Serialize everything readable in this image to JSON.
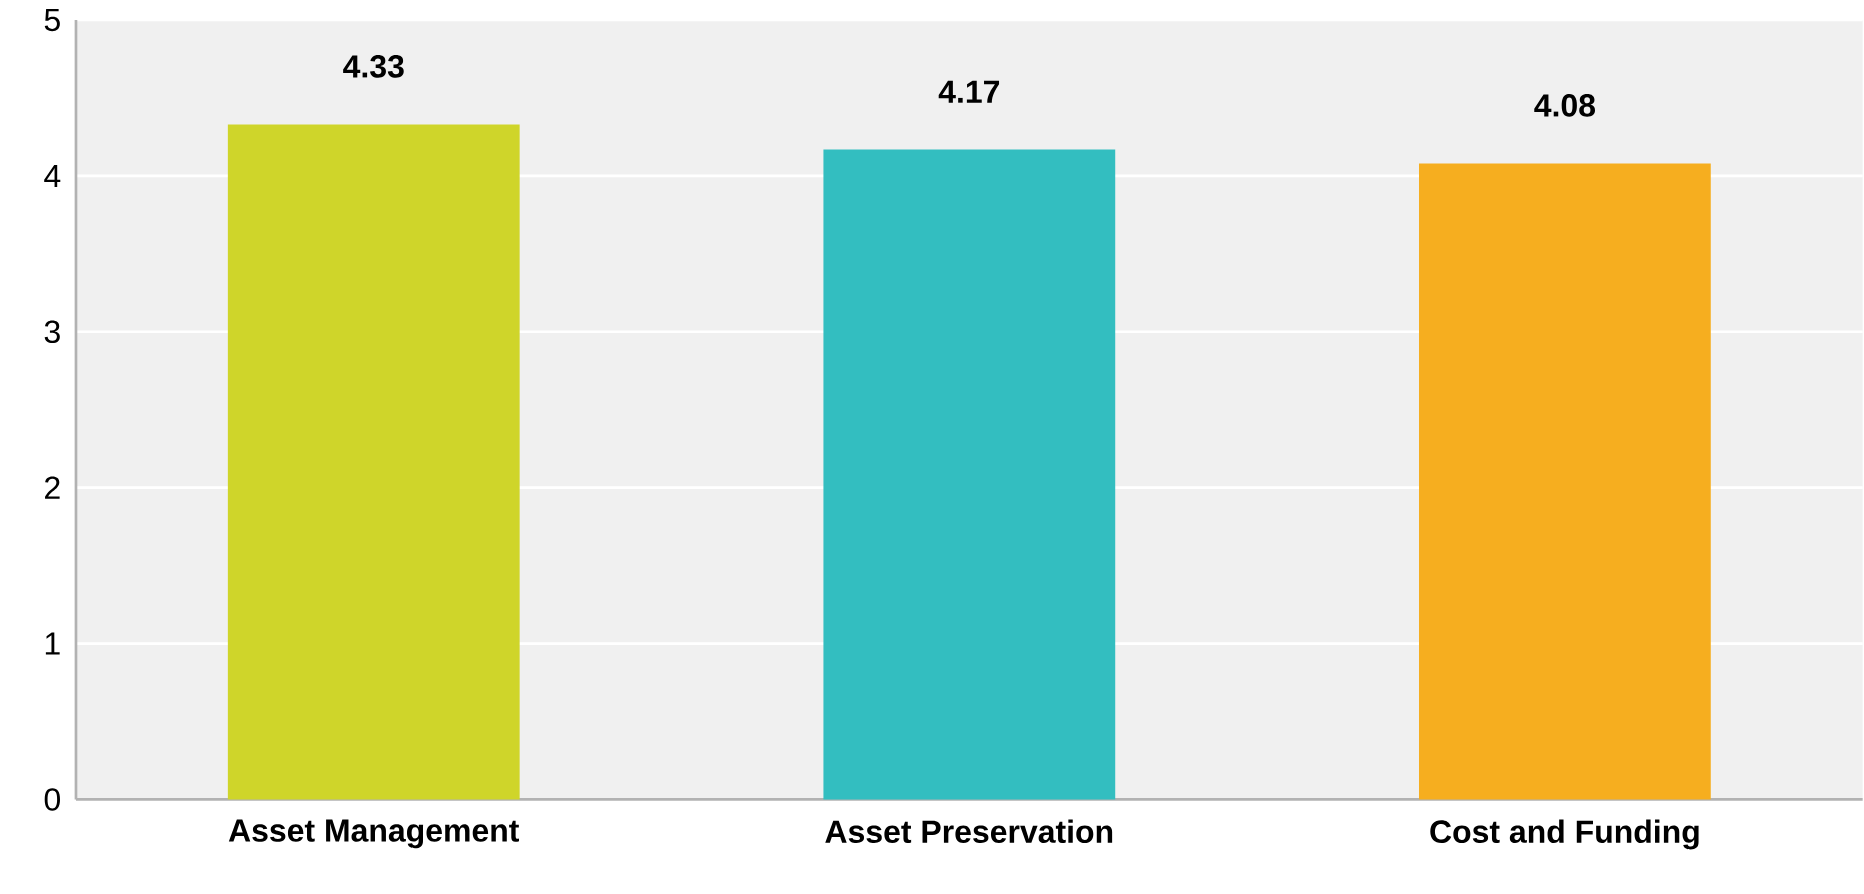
{
  "chart_data": {
    "type": "bar",
    "categories": [
      "Asset Management",
      "Asset Preservation",
      "Cost and Funding"
    ],
    "values": [
      4.33,
      4.17,
      4.08
    ],
    "colors": [
      "#cfd52a",
      "#33bec0",
      "#f6ae1f"
    ],
    "ylim": [
      0,
      5
    ],
    "yticks": [
      0,
      1,
      2,
      3,
      4,
      5
    ],
    "grid": "y",
    "data_labels": true
  }
}
